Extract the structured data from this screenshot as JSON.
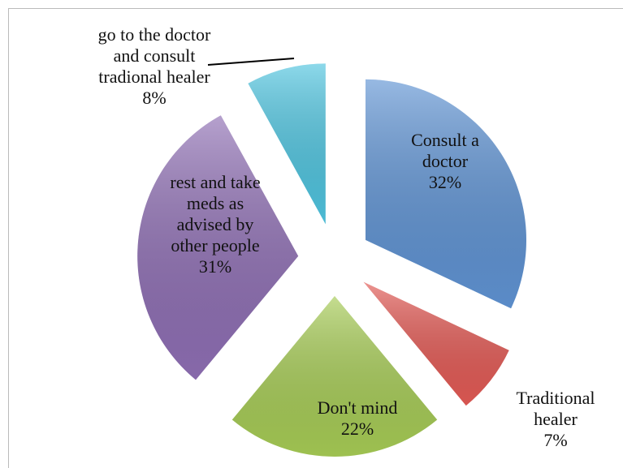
{
  "chart_data": {
    "type": "pie",
    "categories": [
      "Consult a doctor",
      "Traditional healer",
      "Don't mind",
      "rest and take meds as advised by other people",
      "go to the doctor and consult tradional healer"
    ],
    "values": [
      32,
      7,
      22,
      31,
      8
    ],
    "value_labels": [
      "32%",
      "7%",
      "22%",
      "31%",
      "8%"
    ],
    "colors": [
      "#5f93d3",
      "#e25a55",
      "#a6cb55",
      "#8e6eb3",
      "#4fc4df"
    ]
  }
}
